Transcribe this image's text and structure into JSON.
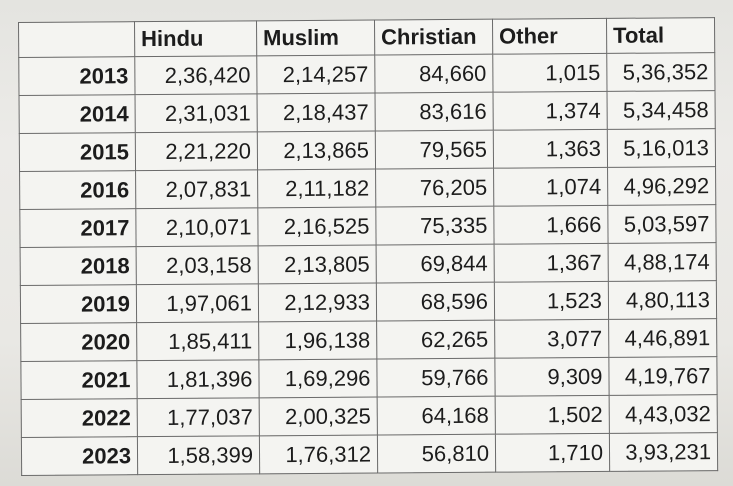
{
  "table": {
    "columns": [
      "",
      "Hindu",
      "Muslim",
      "Christian",
      "Other",
      "Total"
    ],
    "rows": [
      {
        "year": "2013",
        "cells": [
          "2,36,420",
          "2,14,257",
          "84,660",
          "1,015",
          "5,36,352"
        ],
        "highlight": [
          "yellow",
          "",
          "",
          "",
          ""
        ]
      },
      {
        "year": "2014",
        "cells": [
          "2,31,031",
          "2,18,437",
          "83,616",
          "1,374",
          "5,34,458"
        ],
        "highlight": [
          "yellow",
          "",
          "",
          "",
          ""
        ]
      },
      {
        "year": "2015",
        "cells": [
          "2,21,220",
          "2,13,865",
          "79,565",
          "1,363",
          "5,16,013"
        ],
        "highlight": [
          "yellow",
          "",
          "",
          "",
          ""
        ]
      },
      {
        "year": "2016",
        "cells": [
          "2,07,831",
          "2,11,182",
          "76,205",
          "1,074",
          "4,96,292"
        ],
        "highlight": [
          "",
          "yellow",
          "",
          "",
          ""
        ]
      },
      {
        "year": "2017",
        "cells": [
          "2,10,071",
          "2,16,525",
          "75,335",
          "1,666",
          "5,03,597"
        ],
        "highlight": [
          "",
          "yellow",
          "",
          "",
          ""
        ]
      },
      {
        "year": "2018",
        "cells": [
          "2,03,158",
          "2,13,805",
          "69,844",
          "1,367",
          "4,88,174"
        ],
        "highlight": [
          "",
          "yellow",
          "",
          "",
          ""
        ]
      },
      {
        "year": "2019",
        "cells": [
          "1,97,061",
          "2,12,933",
          "68,596",
          "1,523",
          "4,80,113"
        ],
        "highlight": [
          "",
          "yellow",
          "",
          "",
          ""
        ]
      },
      {
        "year": "2020",
        "cells": [
          "1,85,411",
          "1,96,138",
          "62,265",
          "3,077",
          "4,46,891"
        ],
        "highlight": [
          "",
          "yellow",
          "",
          "",
          ""
        ]
      },
      {
        "year": "2021",
        "cells": [
          "1,81,396",
          "1,69,296",
          "59,766",
          "9,309",
          "4,19,767"
        ],
        "highlight": [
          "yellow",
          "",
          "",
          "blue",
          ""
        ]
      },
      {
        "year": "2022",
        "cells": [
          "1,77,037",
          "2,00,325",
          "64,168",
          "1,502",
          "4,43,032"
        ],
        "highlight": [
          "",
          "yellow",
          "",
          "",
          ""
        ]
      },
      {
        "year": "2023",
        "cells": [
          "1,58,399",
          "1,76,312",
          "56,810",
          "1,710",
          "3,93,231"
        ],
        "highlight": [
          "",
          "yellow",
          "",
          "",
          ""
        ]
      }
    ]
  },
  "colors": {
    "yellow": "#e3bb00",
    "blue": "#1fb3d6",
    "grid": "#6b6b6b"
  }
}
